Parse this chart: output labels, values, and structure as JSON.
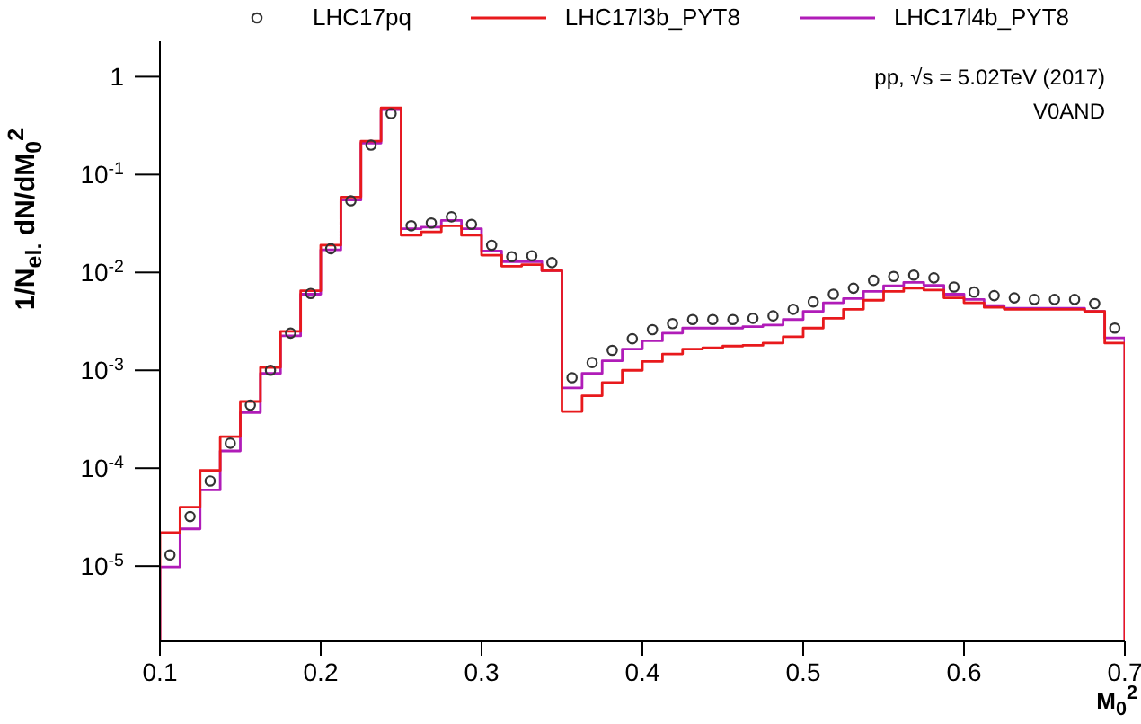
{
  "chart_data": {
    "type": "histogram",
    "xlabel": "M$_{0}$$^{2}$",
    "ylabel": "1/N$_{el.}$ dN/dM$_{0}$$^{2}$",
    "legend": "top",
    "log": true,
    "annotations": [
      "pp, √s = 5.02TeV (2017)",
      "V0AND"
    ],
    "xlim": [
      0.1,
      0.7
    ],
    "xticks": [
      0.1,
      0.2,
      0.3,
      0.4,
      0.5,
      0.6,
      0.7
    ],
    "ylim": [
      1.7e-06,
      2.3
    ],
    "yticks": [
      {
        "value": 1e-05,
        "label": "10$^{-5}$"
      },
      {
        "value": 0.0001,
        "label": "10$^{-4}$"
      },
      {
        "value": 0.001,
        "label": "10$^{-3}$"
      },
      {
        "value": 0.01,
        "label": "10$^{-2}$"
      },
      {
        "value": 0.1,
        "label": "10$^{-1}$"
      },
      1
    ],
    "bins": [
      0.1,
      0.1125,
      0.125,
      0.1375,
      0.15,
      0.1625,
      0.175,
      0.1875,
      0.2,
      0.2125,
      0.225,
      0.2375,
      0.25,
      0.2625,
      0.275,
      0.2875,
      0.3,
      0.3125,
      0.325,
      0.3375,
      0.35,
      0.3625,
      0.375,
      0.3875,
      0.4,
      0.4125,
      0.425,
      0.4375,
      0.45,
      0.4625,
      0.475,
      0.4875,
      0.5,
      0.5125,
      0.525,
      0.5375,
      0.55,
      0.5625,
      0.575,
      0.5875,
      0.6,
      0.6125,
      0.625,
      0.6375,
      0.65,
      0.6625,
      0.675,
      0.6875,
      0.7
    ],
    "series": [
      {
        "name": "LHC17pq",
        "type": "scatter",
        "marker": "circle",
        "color": "#333333",
        "x": [
          0.10625,
          0.11875,
          0.13125,
          0.14375,
          0.15625,
          0.16875,
          0.18125,
          0.19375,
          0.20625,
          0.21875,
          0.23125,
          0.24375,
          0.25625,
          0.26875,
          0.28125,
          0.29375,
          0.30625,
          0.31875,
          0.33125,
          0.34375,
          0.35625,
          0.36875,
          0.38125,
          0.39375,
          0.40625,
          0.41875,
          0.43125,
          0.44375,
          0.45625,
          0.46875,
          0.48125,
          0.49375,
          0.50625,
          0.51875,
          0.53125,
          0.54375,
          0.55625,
          0.56875,
          0.58125,
          0.59375,
          0.60625,
          0.61875,
          0.63125,
          0.64375,
          0.65625,
          0.66875,
          0.68125,
          0.69375
        ],
        "values": [
          1.3e-05,
          3.2e-05,
          7.4e-05,
          0.00018,
          0.00044,
          0.001,
          0.0024,
          0.0061,
          0.0175,
          0.054,
          0.2,
          0.42,
          0.03,
          0.032,
          0.037,
          0.031,
          0.019,
          0.0145,
          0.0148,
          0.0126,
          0.00084,
          0.0012,
          0.0016,
          0.0021,
          0.0026,
          0.003,
          0.0033,
          0.0033,
          0.0033,
          0.0034,
          0.0036,
          0.0042,
          0.005,
          0.006,
          0.0069,
          0.0083,
          0.0091,
          0.0094,
          0.0088,
          0.0071,
          0.0063,
          0.0058,
          0.0055,
          0.0053,
          0.0053,
          0.0053,
          0.0048,
          0.0027
        ]
      },
      {
        "name": "LHC17l3b_PYT8",
        "color": "#e8191c",
        "values": [
          2.2e-05,
          4e-05,
          9.5e-05,
          0.00021,
          0.00048,
          0.00107,
          0.0025,
          0.0065,
          0.019,
          0.059,
          0.22,
          0.48,
          0.024,
          0.026,
          0.03,
          0.024,
          0.015,
          0.0116,
          0.012,
          0.0104,
          0.00038,
          0.00055,
          0.00075,
          0.001,
          0.00123,
          0.00147,
          0.00165,
          0.0017,
          0.00177,
          0.0018,
          0.0019,
          0.0022,
          0.0027,
          0.0034,
          0.0042,
          0.0052,
          0.0064,
          0.0069,
          0.0066,
          0.0055,
          0.0049,
          0.0044,
          0.0042,
          0.0042,
          0.0042,
          0.0042,
          0.004,
          0.0019
        ]
      },
      {
        "name": "LHC17l4b_PYT8",
        "color": "#b01cb8",
        "values": [
          9.8e-06,
          2.4e-05,
          6e-05,
          0.00015,
          0.00037,
          0.00093,
          0.00225,
          0.006,
          0.017,
          0.055,
          0.21,
          0.46,
          0.028,
          0.029,
          0.034,
          0.028,
          0.0166,
          0.0129,
          0.0129,
          0.0104,
          0.00066,
          0.00093,
          0.00125,
          0.00165,
          0.002,
          0.0024,
          0.0027,
          0.0027,
          0.0027,
          0.0028,
          0.0029,
          0.0033,
          0.004,
          0.0049,
          0.0054,
          0.0064,
          0.0073,
          0.0079,
          0.0074,
          0.006,
          0.0053,
          0.0046,
          0.0043,
          0.0043,
          0.0043,
          0.0043,
          0.004,
          0.00215
        ]
      }
    ]
  }
}
